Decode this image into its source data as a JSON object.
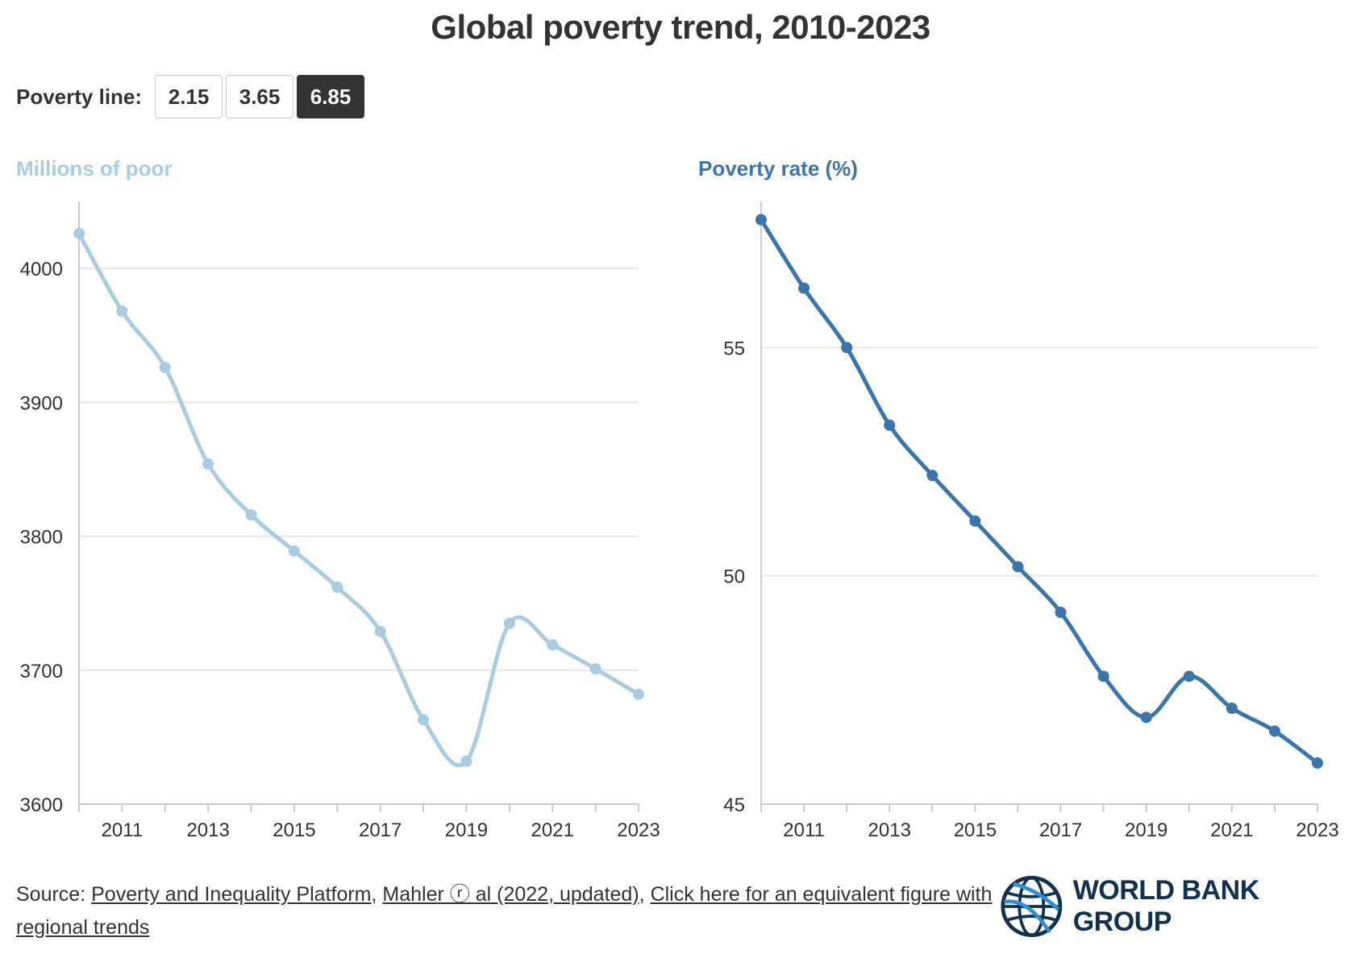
{
  "title": "Global poverty trend, 2010-2023",
  "controls": {
    "label": "Poverty line:",
    "options": [
      "2.15",
      "3.65",
      "6.85"
    ],
    "selected": "6.85"
  },
  "source": {
    "prefix": "Source: ",
    "link1": "Poverty and Inequality Platform",
    "sep1": ", ",
    "link2": "Mahler ⓡ al (2022, updated)",
    "sep2": ", ",
    "link3": "Click here for an equivalent figure with regional trends"
  },
  "logo": {
    "text": "WORLD BANK GROUP",
    "icon": "globe-icon"
  },
  "colors": {
    "left_series": "#a9cce3",
    "right_series": "#3a75ad",
    "grid": "#e6e6e6",
    "axis": "#cccccc"
  },
  "chart_data": [
    {
      "type": "line",
      "title": "Millions of poor",
      "x": [
        2010,
        2011,
        2012,
        2013,
        2014,
        2015,
        2016,
        2017,
        2018,
        2019,
        2020,
        2021,
        2022,
        2023
      ],
      "series": [
        {
          "values": [
            4026,
            3968,
            3926,
            3854,
            3816,
            3789,
            3762,
            3729,
            3663,
            3632,
            3735,
            3719,
            3701,
            3682
          ]
        }
      ],
      "xticks": [
        "2011",
        "2013",
        "2015",
        "2017",
        "2019",
        "2021",
        "2023"
      ],
      "yticks": [
        "3600",
        "3700",
        "3800",
        "3900",
        "4000"
      ],
      "ylim": [
        3600,
        4050
      ],
      "xlim": [
        2010,
        2023
      ],
      "grid": true,
      "legend": "none"
    },
    {
      "type": "line",
      "title": "Poverty rate (%)",
      "x": [
        2010,
        2011,
        2012,
        2013,
        2014,
        2015,
        2016,
        2017,
        2018,
        2019,
        2020,
        2021,
        2022,
        2023
      ],
      "series": [
        {
          "values": [
            57.8,
            56.3,
            55.0,
            53.3,
            52.2,
            51.2,
            50.2,
            49.2,
            47.8,
            46.9,
            47.8,
            47.1,
            46.6,
            45.9
          ]
        }
      ],
      "xticks": [
        "2011",
        "2013",
        "2015",
        "2017",
        "2019",
        "2021",
        "2023"
      ],
      "yticks": [
        "45",
        "50",
        "55"
      ],
      "ylim": [
        45,
        58.2
      ],
      "xlim": [
        2010,
        2023
      ],
      "grid": true,
      "legend": "none"
    }
  ]
}
